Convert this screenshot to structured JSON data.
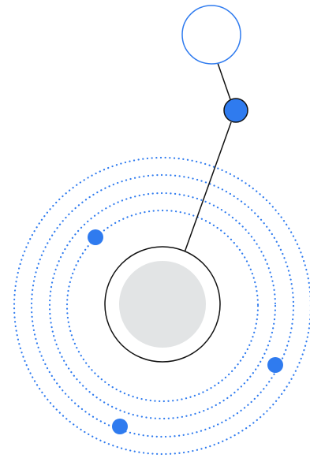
{
  "colors": {
    "background": "#ffffff",
    "accent_blue": "#2f7bef",
    "outline_blue": "#2f7bef",
    "ring_dots": "#2f7bef",
    "line": "#111111",
    "core_fill": "#e2e4e5",
    "core_ring_fill": "#ffffff"
  },
  "illustration": {
    "name": "orbit-illustration",
    "orbit_ring_count": 4,
    "orbit_dot_count": 3
  }
}
